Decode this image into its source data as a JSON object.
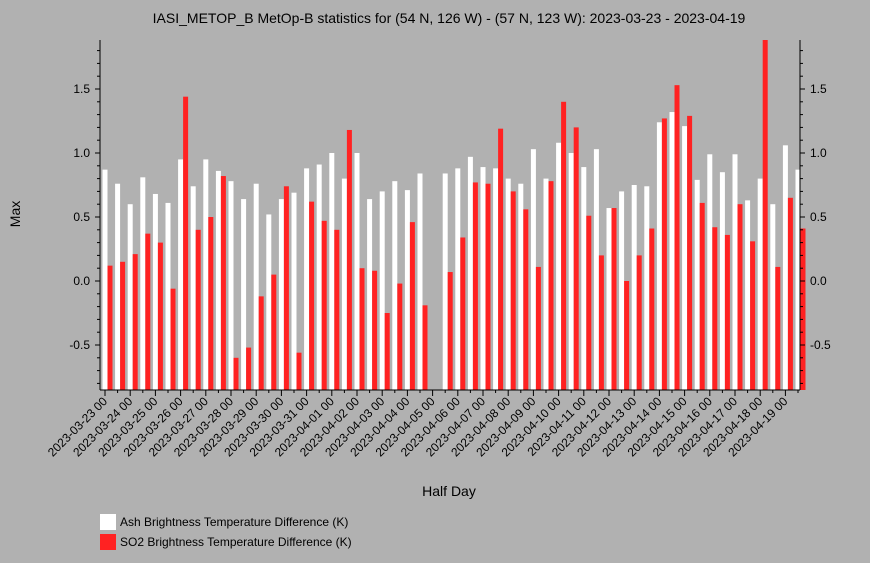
{
  "chart_data": {
    "type": "bar",
    "title": "IASI_METOP_B MetOp-B statistics for (54 N, 126 W) - (57 N, 123 W): 2023-03-23 - 2023-04-19",
    "xlabel": "Half Day",
    "ylabel": "Max",
    "ylim": [
      -0.85,
      1.9
    ],
    "yticks": [
      "1.5",
      "1.0",
      "0.5",
      "0.0",
      "-0.5"
    ],
    "ytick_values": [
      1.5,
      1.0,
      0.5,
      0.0,
      -0.5
    ],
    "x_tick_labels": [
      "2023-03-23 00",
      "2023-03-24 00",
      "2023-03-25 00",
      "2023-03-26 00",
      "2023-03-27 00",
      "2023-03-28 00",
      "2023-03-29 00",
      "2023-03-30 00",
      "2023-03-31 00",
      "2023-04-01 00",
      "2023-04-02 00",
      "2023-04-03 00",
      "2023-04-04 00",
      "2023-04-05 00",
      "2023-04-06 00",
      "2023-04-07 00",
      "2023-04-08 00",
      "2023-04-09 00",
      "2023-04-10 00",
      "2023-04-11 00",
      "2023-04-12 00",
      "2023-04-13 00",
      "2023-04-14 00",
      "2023-04-15 00",
      "2023-04-16 00",
      "2023-04-17 00",
      "2023-04-18 00",
      "2023-04-19 00"
    ],
    "series": [
      {
        "name": "Ash Brightness Temperature Difference (K)",
        "color": "#ffffff",
        "values": [
          0.87,
          0.76,
          0.6,
          0.81,
          0.68,
          0.61,
          0.95,
          0.74,
          0.95,
          0.86,
          0.78,
          0.64,
          0.76,
          0.52,
          0.64,
          0.69,
          0.88,
          0.91,
          1.0,
          0.8,
          1.0,
          0.64,
          0.7,
          0.78,
          0.71,
          0.84,
          null,
          0.84,
          0.88,
          0.97,
          0.89,
          0.88,
          0.8,
          0.76,
          1.03,
          0.8,
          1.08,
          1.0,
          0.89,
          1.03,
          0.57,
          0.7,
          0.75,
          0.74,
          1.24,
          1.32,
          1.21,
          0.79,
          0.99,
          0.85,
          0.99,
          0.63,
          0.8,
          0.6,
          1.06,
          0.87
        ]
      },
      {
        "name": "SO2 Brightness Temperature Difference (K)",
        "color": "#ff2222",
        "values": [
          0.12,
          0.15,
          0.21,
          0.37,
          0.3,
          -0.06,
          1.44,
          0.4,
          0.5,
          0.82,
          -0.6,
          -0.52,
          -0.12,
          0.05,
          0.74,
          -0.56,
          0.62,
          0.47,
          0.4,
          1.18,
          0.1,
          0.08,
          -0.25,
          -0.02,
          0.46,
          -0.19,
          null,
          0.07,
          0.34,
          0.77,
          0.76,
          1.19,
          0.7,
          0.56,
          0.11,
          0.78,
          1.4,
          1.2,
          0.51,
          0.2,
          0.57,
          0.0,
          0.2,
          0.41,
          1.27,
          1.53,
          1.29,
          0.61,
          0.42,
          0.36,
          0.6,
          0.31,
          1.9,
          0.11,
          0.65,
          0.41
        ]
      }
    ],
    "legend_position": "bottom-left",
    "grid": false
  }
}
